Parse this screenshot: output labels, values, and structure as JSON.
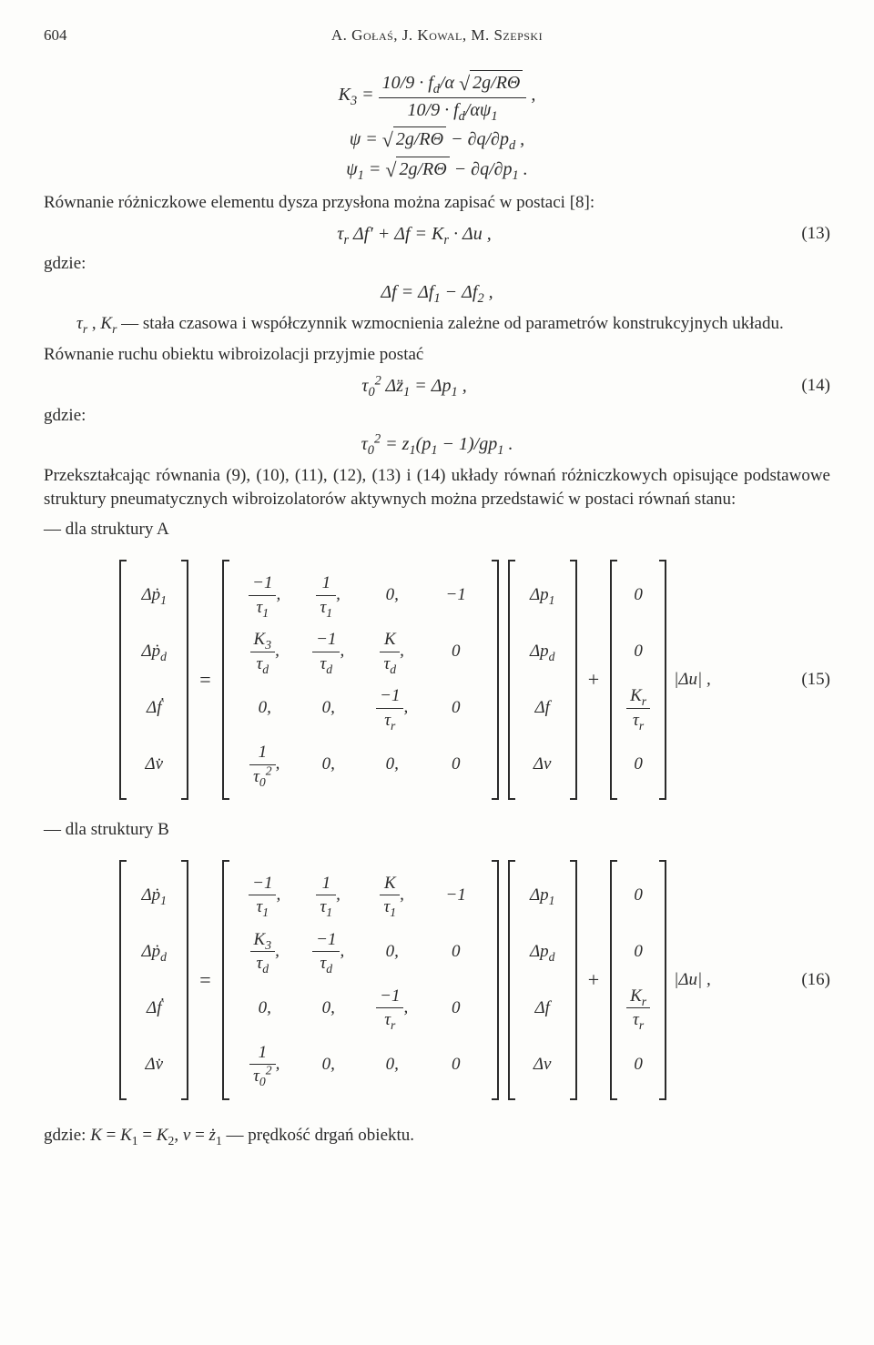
{
  "page_number": "604",
  "authors_line": "A. Gołaś, J. Kowal, M. Szepski",
  "eq_k3_num": "10/9 · f_d/α √(2g/RΘ)",
  "eq_k3_den": "10/9 · f_d/αψ₁",
  "eq_psi": "ψ = √(2g/RΘ) − ∂q/∂p_d ,",
  "eq_psi1": "ψ₁ = √(2g/RΘ) − ∂q/∂p₁ .",
  "para1": "Równanie różniczkowe elementu dysza przysłona można zapisać w postaci [8]:",
  "eq13_body": "τ_r Δf′ + Δf = K_r · Δu ,",
  "eq13_num": "(13)",
  "gdzie": "gdzie:",
  "eq_df": "Δf = Δf₁ − Δf₂ ,",
  "tau_def": "τ_r , K_r — stała czasowa i współczynnik wzmocnienia zależne od parametrów konstrukcyjnych układu.",
  "para2": "Równanie ruchu obiektu wibroizolacji przyjmie postać",
  "eq14_body": "τ₀² Δz̈₁ = Δp₁ ,",
  "eq14_num": "(14)",
  "eq_tau0": "τ₀² = z₁(p₁ − 1)/gp₁ .",
  "para3": "Przekształcając równania (9), (10), (11), (12), (13) i (14) układy równań różniczkowych opisujące podstawowe struktury pneumatycznych wibroizolatorów aktywnych można przedstawić w postaci równań stanu:",
  "structA": "— dla struktury A",
  "structB": "— dla struktury B",
  "eq15_num": "(15)",
  "eq16_num": "(16)",
  "abs_du": "|Δu| ,",
  "vec_x": [
    "Δṗ₁",
    "Δṗ_d",
    "Δḟ",
    "Δv̇"
  ],
  "vec_p": [
    "Δp₁",
    "Δp_d",
    "Δf",
    "Δv"
  ],
  "vec_b": [
    "0",
    "0",
    "K_r/τ_r",
    "0"
  ],
  "matA_raw": [
    [
      "−1/τ₁,",
      "1/τ₁,",
      "0,",
      "−1"
    ],
    [
      "K₃/τ_d,",
      "−1/τ_d,",
      "K/τ_d,",
      "0"
    ],
    [
      "0,",
      "0,",
      "−1/τ_r,",
      "0"
    ],
    [
      "1/τ₀²,",
      "0,",
      "0,",
      "0"
    ]
  ],
  "matB_raw": [
    [
      "−1/τ₁,",
      "1/τ₁,",
      "K/τ₁,",
      "−1"
    ],
    [
      "K₃/τ_d,",
      "−1/τ_d,",
      "0,",
      "0"
    ],
    [
      "0,",
      "0,",
      "−1/τ_r,",
      "0"
    ],
    [
      "1/τ₀²,",
      "0,",
      "0,",
      "0"
    ]
  ],
  "footer": "gdzie: K = K₁ = K₂, v = ż₁ — prędkość drgań obiektu."
}
